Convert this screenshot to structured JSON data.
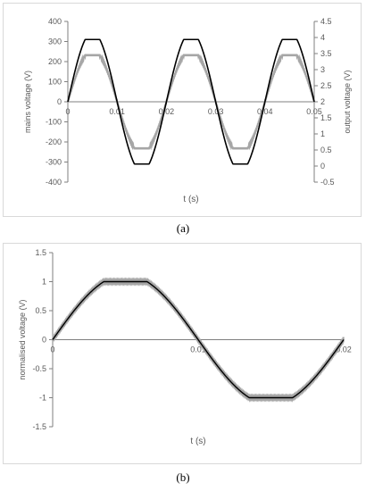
{
  "chart_data": [
    {
      "type": "line",
      "panel_label": "(a)",
      "xlabel": "t (s)",
      "ylabel_left": "mains voltage (V)",
      "ylabel_right": "output voltage (V)",
      "xlim": [
        0,
        0.05
      ],
      "x_ticks": [
        "0",
        "0.01",
        "0.02",
        "0.03",
        "0.04",
        "0.05"
      ],
      "ylim_left": [
        -400,
        400
      ],
      "y_ticks_left": [
        "400",
        "300",
        "200",
        "100",
        "0",
        "-100",
        "-200",
        "-300",
        "-400"
      ],
      "ylim_right": [
        -0.5,
        4.5
      ],
      "y_ticks_right": [
        "4.5",
        "4",
        "3.5",
        "3",
        "2.5",
        "2",
        "1.5",
        "1",
        "0.5",
        "0",
        "-0.5"
      ],
      "frequency_hz": 50,
      "series": [
        {
          "axis": "left",
          "color": "#000000",
          "amplitude": 310,
          "flat_top_value": 310
        },
        {
          "axis": "right",
          "color": "#a6a6a6",
          "offset": 2.0,
          "amplitude": 1.45,
          "flat_top_value": 3.43,
          "flat_bottom_value": 0.57
        }
      ],
      "grid": false
    },
    {
      "type": "line",
      "panel_label": "(b)",
      "xlabel": "t (s)",
      "ylabel": "normalised voltage (V)",
      "xlim": [
        0,
        0.02
      ],
      "x_ticks": [
        "0",
        "0.01",
        "0.02"
      ],
      "ylim": [
        -1.5,
        1.5
      ],
      "y_ticks": [
        "1.5",
        "1",
        "0.5",
        "0",
        "-0.5",
        "-1",
        "-1.5"
      ],
      "frequency_hz": 50,
      "series": [
        {
          "color": "#000000",
          "amplitude": 1,
          "flat_top_value": 1
        },
        {
          "color": "#a6a6a6",
          "amplitude": 1,
          "flat_top_value": 1
        }
      ],
      "grid": false
    }
  ]
}
